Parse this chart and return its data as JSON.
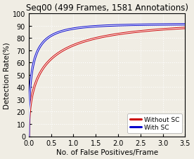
{
  "title": "Seq00 (499 Frames, 1581 Annotations)",
  "xlabel": "No. of False Positives/Frame",
  "ylabel": "Detection Rate(%)",
  "xlim": [
    0,
    3.5
  ],
  "ylim": [
    0,
    100
  ],
  "xticks": [
    0,
    0.5,
    1.0,
    1.5,
    2.0,
    2.5,
    3.0,
    3.5
  ],
  "yticks": [
    0,
    10,
    20,
    30,
    40,
    50,
    60,
    70,
    80,
    90,
    100
  ],
  "color_without_sc": "#cc0000",
  "color_with_sc": "#0000cc",
  "legend_labels": [
    "Without SC",
    "With SC"
  ],
  "title_fontsize": 8.5,
  "axis_fontsize": 7.5,
  "tick_fontsize": 7,
  "legend_fontsize": 6.5,
  "background_color": "#f0ede4",
  "grid_color": "#ffffff",
  "axes_bg": "#f0ede4"
}
